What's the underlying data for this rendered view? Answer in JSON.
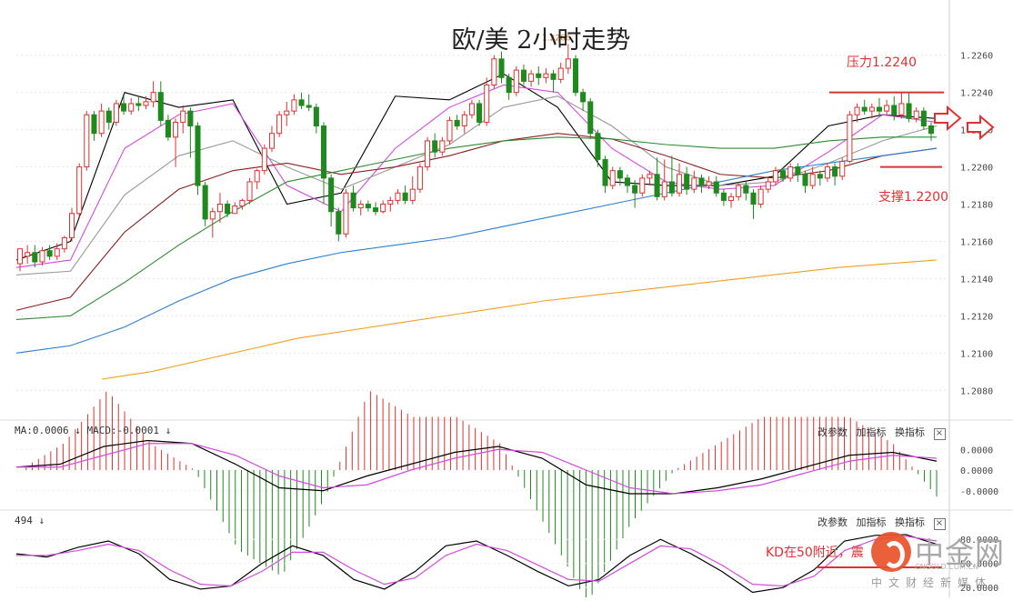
{
  "title": "欧/美 2小时走势",
  "resistance_label": "压力1.2240",
  "support_label": "支撑1.2200",
  "kd_note": "KD在50附近，震",
  "peak_label": "1.2266",
  "macd_header": "MA:0.0006 ↓ MACD:-0.0001 ↓",
  "kd_header": "494 ↓",
  "pane_buttons": {
    "change": "改参数",
    "add": "加指标",
    "swap": "换指标",
    "close": "×"
  },
  "watermark": {
    "text": "中金网",
    "url": "CNGOLD.COM.CN",
    "sub": "中文财经新媒体"
  },
  "colors": {
    "up": "#e03030",
    "down": "#1e8a1e",
    "ma5": "#000000",
    "ma10": "#d44be0",
    "ma20": "#999999",
    "ma30": "#8b1f1f",
    "ma60": "#2e8b2e",
    "ma120": "#2d7fd0",
    "ma250": "#f0a020",
    "resistance": "#e03030",
    "support": "#e03030"
  },
  "chart_data": [
    {
      "type": "candlestick",
      "title": "欧/美 2小时走势",
      "ylim": [
        1.2065,
        1.2275
      ],
      "yticks": [
        "1.2260",
        "1.2240",
        "1.2220",
        "1.2200",
        "1.2180",
        "1.2160",
        "1.2140",
        "1.2120",
        "1.2100",
        "1.2080"
      ],
      "resistance": 1.224,
      "support": 1.22,
      "candles": [
        [
          1.2148,
          1.2156,
          1.2152,
          1.2144
        ],
        [
          1.2152,
          1.2154,
          1.2158,
          1.2148
        ],
        [
          1.2154,
          1.2149,
          1.2158,
          1.2146
        ],
        [
          1.2149,
          1.2155,
          1.2157,
          1.2147
        ],
        [
          1.2155,
          1.2152,
          1.2158,
          1.215
        ],
        [
          1.2152,
          1.2156,
          1.2159,
          1.215
        ],
        [
          1.2156,
          1.2162,
          1.2163,
          1.2154
        ],
        [
          1.2162,
          1.2175,
          1.2178,
          1.216
        ],
        [
          1.2175,
          1.22,
          1.2202,
          1.2173
        ],
        [
          1.22,
          1.2228,
          1.223,
          1.2198
        ],
        [
          1.2228,
          1.2218,
          1.223,
          1.2214
        ],
        [
          1.2218,
          1.223,
          1.2234,
          1.2216
        ],
        [
          1.223,
          1.2224,
          1.2232,
          1.222
        ],
        [
          1.2224,
          1.2234,
          1.2236,
          1.2222
        ],
        [
          1.2234,
          1.223,
          1.2238,
          1.2228
        ],
        [
          1.223,
          1.2234,
          1.2237,
          1.2228
        ],
        [
          1.2234,
          1.2233,
          1.2238,
          1.223
        ],
        [
          1.2233,
          1.2235,
          1.2238,
          1.2231
        ],
        [
          1.2235,
          1.224,
          1.2246,
          1.2232
        ],
        [
          1.224,
          1.2225,
          1.2246,
          1.2222
        ],
        [
          1.2225,
          1.2216,
          1.2228,
          1.2214
        ],
        [
          1.2216,
          1.2224,
          1.2226,
          1.22
        ],
        [
          1.2224,
          1.223,
          1.2233,
          1.2218
        ],
        [
          1.223,
          1.2222,
          1.2232,
          1.2205
        ],
        [
          1.2222,
          1.219,
          1.2224,
          1.2185
        ],
        [
          1.219,
          1.2172,
          1.2192,
          1.2168
        ],
        [
          1.2172,
          1.2176,
          1.2178,
          1.2162
        ],
        [
          1.2176,
          1.218,
          1.2186,
          1.217
        ],
        [
          1.218,
          1.2175,
          1.2182,
          1.2173
        ],
        [
          1.2175,
          1.2179,
          1.2181,
          1.2175
        ],
        [
          1.2179,
          1.2182,
          1.2183,
          1.2177
        ],
        [
          1.2182,
          1.2192,
          1.2194,
          1.218
        ],
        [
          1.2192,
          1.2198,
          1.2199,
          1.2188
        ],
        [
          1.2198,
          1.221,
          1.2212,
          1.2196
        ],
        [
          1.221,
          1.2218,
          1.2222,
          1.2208
        ],
        [
          1.2218,
          1.2228,
          1.223,
          1.2216
        ],
        [
          1.2228,
          1.223,
          1.2235,
          1.2222
        ],
        [
          1.223,
          1.2236,
          1.2239,
          1.2228
        ],
        [
          1.2236,
          1.2233,
          1.224,
          1.2231
        ],
        [
          1.2233,
          1.2232,
          1.2239,
          1.223
        ],
        [
          1.2232,
          1.2222,
          1.2234,
          1.2218
        ],
        [
          1.2222,
          1.2194,
          1.2224,
          1.218
        ],
        [
          1.2194,
          1.2176,
          1.2196,
          1.2168
        ],
        [
          1.2176,
          1.2164,
          1.2178,
          1.216
        ],
        [
          1.2164,
          1.2186,
          1.2188,
          1.2162
        ],
        [
          1.2186,
          1.2178,
          1.219,
          1.2176
        ],
        [
          1.2178,
          1.218,
          1.2182,
          1.2174
        ],
        [
          1.218,
          1.2178,
          1.2182,
          1.2176
        ],
        [
          1.2178,
          1.2176,
          1.2181,
          1.2174
        ],
        [
          1.2176,
          1.218,
          1.2182,
          1.2175
        ],
        [
          1.218,
          1.2182,
          1.2184,
          1.2176
        ],
        [
          1.2182,
          1.2186,
          1.2188,
          1.218
        ],
        [
          1.2186,
          1.2182,
          1.219,
          1.218
        ],
        [
          1.2182,
          1.2188,
          1.2195,
          1.218
        ],
        [
          1.2188,
          1.22,
          1.2202,
          1.2186
        ],
        [
          1.22,
          1.2214,
          1.2216,
          1.2198
        ],
        [
          1.2214,
          1.2208,
          1.2218,
          1.2205
        ],
        [
          1.2208,
          1.2214,
          1.2216,
          1.2206
        ],
        [
          1.2214,
          1.2225,
          1.2227,
          1.2212
        ],
        [
          1.2225,
          1.2222,
          1.2228,
          1.222
        ],
        [
          1.2222,
          1.2228,
          1.223,
          1.2218
        ],
        [
          1.2228,
          1.2234,
          1.2236,
          1.2226
        ],
        [
          1.2234,
          1.2224,
          1.2236,
          1.2222
        ],
        [
          1.2224,
          1.2244,
          1.2248,
          1.2222
        ],
        [
          1.2244,
          1.2258,
          1.226,
          1.2242
        ],
        [
          1.2258,
          1.2248,
          1.2262,
          1.2245
        ],
        [
          1.2248,
          1.224,
          1.225,
          1.2236
        ],
        [
          1.224,
          1.2252,
          1.2254,
          1.2238
        ],
        [
          1.2252,
          1.2246,
          1.2255,
          1.2244
        ],
        [
          1.2246,
          1.225,
          1.2252,
          1.2243
        ],
        [
          1.225,
          1.2248,
          1.2254,
          1.2244
        ],
        [
          1.2248,
          1.225,
          1.2253,
          1.2245
        ],
        [
          1.225,
          1.2247,
          1.2252,
          1.224
        ],
        [
          1.2247,
          1.2253,
          1.2256,
          1.2245
        ],
        [
          1.2253,
          1.2258,
          1.2266,
          1.225
        ],
        [
          1.2258,
          1.224,
          1.226,
          1.2238
        ],
        [
          1.224,
          1.2235,
          1.2242,
          1.223
        ],
        [
          1.2235,
          1.2218,
          1.2237,
          1.2215
        ],
        [
          1.2218,
          1.2204,
          1.222,
          1.22
        ],
        [
          1.2204,
          1.219,
          1.2206,
          1.2186
        ],
        [
          1.219,
          1.2198,
          1.22,
          1.2188
        ],
        [
          1.2198,
          1.2194,
          1.22,
          1.219
        ],
        [
          1.2194,
          1.219,
          1.2196,
          1.2186
        ],
        [
          1.219,
          1.2186,
          1.2193,
          1.2178
        ],
        [
          1.2186,
          1.2194,
          1.2196,
          1.2184
        ],
        [
          1.2194,
          1.2196,
          1.2198,
          1.219
        ],
        [
          1.2196,
          1.2184,
          1.2205,
          1.2182
        ],
        [
          1.2184,
          1.2192,
          1.2204,
          1.2182
        ],
        [
          1.2192,
          1.2186,
          1.2206,
          1.2184
        ],
        [
          1.2186,
          1.2196,
          1.2202,
          1.2184
        ],
        [
          1.2196,
          1.2188,
          1.22,
          1.2185
        ],
        [
          1.2188,
          1.2194,
          1.2198,
          1.2186
        ],
        [
          1.2194,
          1.219,
          1.2196,
          1.2186
        ],
        [
          1.219,
          1.2192,
          1.2195,
          1.2188
        ],
        [
          1.2192,
          1.2186,
          1.2195,
          1.2184
        ],
        [
          1.2186,
          1.2182,
          1.2188,
          1.2179
        ],
        [
          1.2182,
          1.2184,
          1.2186,
          1.2178
        ],
        [
          1.2184,
          1.219,
          1.2192,
          1.2182
        ],
        [
          1.219,
          1.2186,
          1.2192,
          1.2182
        ],
        [
          1.2186,
          1.218,
          1.2188,
          1.2172
        ],
        [
          1.218,
          1.2188,
          1.219,
          1.2178
        ],
        [
          1.2188,
          1.2192,
          1.2194,
          1.2186
        ],
        [
          1.2192,
          1.2198,
          1.22,
          1.219
        ],
        [
          1.2198,
          1.2194,
          1.22,
          1.2192
        ],
        [
          1.2194,
          1.22,
          1.2202,
          1.2192
        ],
        [
          1.22,
          1.2196,
          1.2202,
          1.2192
        ],
        [
          1.2196,
          1.219,
          1.2198,
          1.2186
        ],
        [
          1.219,
          1.2196,
          1.22,
          1.2188
        ],
        [
          1.2196,
          1.2194,
          1.2198,
          1.219
        ],
        [
          1.2194,
          1.22,
          1.2202,
          1.2192
        ],
        [
          1.22,
          1.2195,
          1.2202,
          1.219
        ],
        [
          1.2195,
          1.2203,
          1.2205,
          1.2193
        ],
        [
          1.2203,
          1.2228,
          1.223,
          1.2202
        ],
        [
          1.2228,
          1.2232,
          1.2234,
          1.2224
        ],
        [
          1.2232,
          1.223,
          1.2236,
          1.2228
        ],
        [
          1.223,
          1.2232,
          1.2234,
          1.2226
        ],
        [
          1.2232,
          1.223,
          1.2237,
          1.2228
        ],
        [
          1.223,
          1.2233,
          1.2236,
          1.2228
        ],
        [
          1.2233,
          1.2228,
          1.2238,
          1.2225
        ],
        [
          1.2228,
          1.2234,
          1.224,
          1.2226
        ],
        [
          1.2234,
          1.2226,
          1.224,
          1.2224
        ],
        [
          1.2226,
          1.223,
          1.2232,
          1.2224
        ],
        [
          1.223,
          1.2222,
          1.2232,
          1.222
        ],
        [
          1.2222,
          1.2218,
          1.2224,
          1.2214
        ]
      ],
      "ma": [
        {
          "name": "MA5",
          "values": [
            [
              1.215,
              1.216,
              1.224,
              1.2232,
              1.2236,
              1.218,
              1.2186,
              1.2238,
              1.2236,
              1.225,
              1.2232,
              1.2192,
              1.219,
              1.219,
              1.2195,
              1.2222,
              1.2228,
              1.2226
            ]
          ]
        },
        {
          "name": "MA10",
          "values": [
            [
              1.2146,
              1.215,
              1.221,
              1.2228,
              1.2234,
              1.219,
              1.2176,
              1.221,
              1.2232,
              1.2244,
              1.224,
              1.221,
              1.2192,
              1.2188,
              1.219,
              1.2208,
              1.2228,
              1.2224
            ]
          ]
        },
        {
          "name": "MA20",
          "values": [
            [
              1.2142,
              1.2144,
              1.2185,
              1.2206,
              1.2214,
              1.22,
              1.2188,
              1.22,
              1.2212,
              1.2232,
              1.2238,
              1.2222,
              1.22,
              1.219,
              1.2192,
              1.2202,
              1.2214,
              1.2222
            ]
          ]
        },
        {
          "name": "MA30",
          "values": [
            [
              1.2123,
              1.213,
              1.2165,
              1.2188,
              1.2198,
              1.2202,
              1.2196,
              1.22,
              1.2206,
              1.2214,
              1.2218,
              1.2215,
              1.2206,
              1.2196,
              1.2194,
              1.2198,
              1.2206,
              1.221
            ]
          ]
        },
        {
          "name": "MA60",
          "values": [
            [
              1.2118,
              1.212,
              1.2138,
              1.2158,
              1.2176,
              1.2192,
              1.2198,
              1.2204,
              1.221,
              1.2214,
              1.2216,
              1.2215,
              1.2212,
              1.221,
              1.221,
              1.2214,
              1.2216,
              1.2216
            ]
          ]
        },
        {
          "name": "MA120",
          "values": [
            [
              1.21,
              1.2104,
              1.2114,
              1.2128,
              1.214,
              1.2148,
              1.2154,
              1.2158,
              1.2162,
              1.2168,
              1.2174,
              1.218,
              1.2186,
              1.2192,
              1.2198,
              1.2202,
              1.2206,
              1.221
            ]
          ]
        },
        {
          "name": "MA250",
          "values": [
            [
              1.2086,
              1.209,
              1.2096,
              1.2102,
              1.2108,
              1.2112,
              1.2116,
              1.212,
              1.2124,
              1.2128,
              1.2131,
              1.2134,
              1.2137,
              1.214,
              1.2143,
              1.2146,
              1.2148,
              1.215
            ]
          ]
        }
      ]
    },
    {
      "type": "line",
      "name": "MACD",
      "ylim": [
        -0.0012,
        0.0012
      ],
      "yticks": [
        "0.0000",
        "0.0000",
        "-0.0000"
      ],
      "dif": [
        0.0001,
        0.0002,
        0.0008,
        0.001,
        0.0009,
        0.0002,
        -0.0006,
        -0.0007,
        -0.0002,
        0.0002,
        0.0006,
        0.0008,
        0.0004,
        -0.0005,
        -0.0008,
        -0.0008,
        -0.0006,
        -0.0003,
        0.0001,
        0.0005,
        0.0006,
        0.0003
      ],
      "dea": [
        0.0001,
        0.0001,
        0.0005,
        0.0009,
        0.0009,
        0.0005,
        -0.0002,
        -0.0006,
        -0.0005,
        0.0,
        0.0004,
        0.0007,
        0.0006,
        0.0,
        -0.0006,
        -0.0008,
        -0.0007,
        -0.0005,
        -0.0001,
        0.0003,
        0.0005,
        0.0004
      ]
    },
    {
      "type": "line",
      "name": "KD",
      "ylim": [
        10,
        95
      ],
      "yticks": [
        "80.0000",
        "50.0000",
        "20.0000"
      ],
      "k": [
        62,
        58,
        70,
        78,
        62,
        30,
        18,
        22,
        50,
        72,
        60,
        30,
        18,
        40,
        72,
        78,
        60,
        40,
        22,
        30,
        60,
        80,
        62,
        40,
        14,
        20,
        42,
        78,
        85,
        86,
        74
      ],
      "d": [
        60,
        60,
        66,
        74,
        66,
        42,
        24,
        22,
        40,
        64,
        64,
        42,
        24,
        32,
        60,
        74,
        66,
        48,
        30,
        28,
        50,
        72,
        68,
        48,
        24,
        22,
        34,
        66,
        80,
        84,
        78
      ]
    }
  ]
}
